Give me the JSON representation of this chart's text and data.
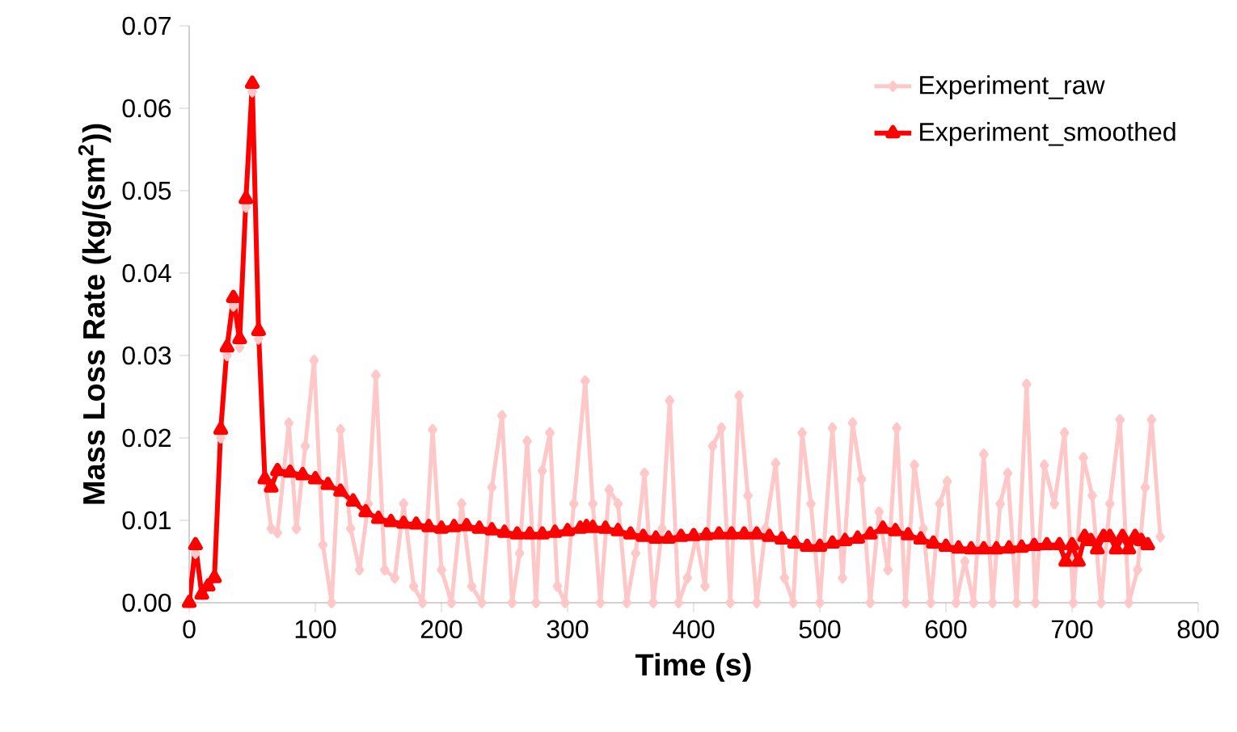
{
  "chart_data": {
    "type": "line",
    "xlabel": "Time (s)",
    "ylabel": "Mass Loss Rate (kg/(sm$^{2}$))",
    "xlim": [
      0,
      800
    ],
    "ylim": [
      0,
      0.07
    ],
    "xticks": [
      0,
      100,
      200,
      300,
      400,
      500,
      600,
      700,
      800
    ],
    "yticks": [
      {
        "value": 0,
        "label": "0.00"
      },
      {
        "value": 0.01,
        "label": "0.01"
      },
      {
        "value": 0.02,
        "label": "0.02"
      },
      {
        "value": 0.03,
        "label": "0.03"
      },
      {
        "value": 0.04,
        "label": "0.04"
      },
      {
        "value": 0.05,
        "label": "0.05"
      },
      {
        "value": 0.06,
        "label": "0.06"
      },
      {
        "value": 0.07,
        "label": "0.07"
      }
    ],
    "grid": false,
    "legend": "top right",
    "series": [
      {
        "name": "Experiment_raw",
        "color": "#ffc8c8",
        "marker": "diamond",
        "x": [
          0,
          5,
          10,
          15,
          20,
          25,
          30,
          35,
          40,
          45,
          50,
          55,
          60,
          65,
          70,
          79,
          85,
          92,
          99,
          106,
          113,
          120,
          128,
          135,
          142,
          148,
          155,
          163,
          170,
          178,
          185,
          193,
          200,
          208,
          216,
          224,
          232,
          240,
          248,
          256,
          262,
          268,
          275,
          280,
          286,
          292,
          298,
          305,
          314,
          320,
          326,
          333,
          340,
          347,
          354,
          361,
          368,
          375,
          381,
          388,
          395,
          402,
          409,
          415,
          422,
          429,
          436,
          443,
          450,
          457,
          465,
          472,
          479,
          486,
          493,
          500,
          510,
          518,
          526,
          533,
          540,
          547,
          554,
          561,
          568,
          575,
          582,
          588,
          595,
          601,
          608,
          615,
          622,
          630,
          637,
          643,
          649,
          656,
          664,
          671,
          678,
          686,
          694,
          701,
          709,
          716,
          723,
          730,
          738,
          745,
          752,
          758,
          763,
          770
        ],
        "values": [
          0,
          0.006,
          0.001,
          0.002,
          0.003,
          0.02,
          0.03,
          0.036,
          0.031,
          0.048,
          0.062,
          0.032,
          0.015,
          0.009,
          0.0085,
          0.0218,
          0.009,
          0.019,
          0.0294,
          0.007,
          0.0,
          0.021,
          0.009,
          0.004,
          0.012,
          0.0276,
          0.004,
          0.003,
          0.012,
          0.002,
          0.0,
          0.021,
          0.004,
          0.0,
          0.012,
          0.002,
          0.0,
          0.014,
          0.0227,
          0.0,
          0.006,
          0.0196,
          0.0,
          0.016,
          0.0206,
          0.002,
          0.0,
          0.012,
          0.0269,
          0.012,
          0.0,
          0.0137,
          0.012,
          0.0,
          0.006,
          0.0157,
          0.0,
          0.009,
          0.0245,
          0.0,
          0.003,
          0.008,
          0.002,
          0.019,
          0.0212,
          0.0,
          0.0251,
          0.013,
          0.0,
          0.009,
          0.0169,
          0.003,
          0.0,
          0.0206,
          0.012,
          0.0,
          0.0212,
          0.003,
          0.0218,
          0.015,
          0.0,
          0.011,
          0.004,
          0.0212,
          0.0,
          0.0167,
          0.009,
          0.0,
          0.012,
          0.0147,
          0.0,
          0.005,
          0.0,
          0.018,
          0.0,
          0.012,
          0.0157,
          0.0,
          0.0265,
          0.0,
          0.0167,
          0.012,
          0.0206,
          0.0,
          0.0176,
          0.013,
          0.0,
          0.012,
          0.0222,
          0.0,
          0.004,
          0.014,
          0.0222,
          0.008
        ]
      },
      {
        "name": "Experiment_smoothed",
        "color": "#ff0000",
        "marker": "triangle",
        "x": [
          0,
          5,
          10,
          15,
          20,
          25,
          30,
          35,
          40,
          45,
          50,
          55,
          60,
          65,
          70,
          80,
          90,
          100,
          110,
          120,
          130,
          140,
          150,
          160,
          170,
          180,
          190,
          200,
          210,
          220,
          230,
          240,
          250,
          260,
          270,
          280,
          290,
          300,
          310,
          315,
          320,
          330,
          340,
          350,
          360,
          370,
          380,
          390,
          400,
          410,
          420,
          430,
          440,
          450,
          460,
          470,
          480,
          490,
          500,
          510,
          520,
          530,
          540,
          550,
          560,
          570,
          580,
          590,
          600,
          610,
          620,
          630,
          640,
          650,
          660,
          670,
          680,
          690,
          695,
          700,
          705,
          710,
          715,
          720,
          725,
          730,
          735,
          740,
          745,
          750,
          755,
          760
        ],
        "values": [
          0,
          0.007,
          0.001,
          0.002,
          0.003,
          0.021,
          0.031,
          0.037,
          0.032,
          0.049,
          0.063,
          0.033,
          0.015,
          0.014,
          0.016,
          0.0158,
          0.0155,
          0.015,
          0.0143,
          0.0135,
          0.0123,
          0.011,
          0.0102,
          0.0098,
          0.0096,
          0.0095,
          0.0092,
          0.009,
          0.0092,
          0.0093,
          0.009,
          0.0088,
          0.0085,
          0.0083,
          0.0083,
          0.0083,
          0.0085,
          0.0087,
          0.009,
          0.0092,
          0.0091,
          0.009,
          0.0087,
          0.0083,
          0.008,
          0.0078,
          0.0078,
          0.008,
          0.0081,
          0.0082,
          0.0083,
          0.0083,
          0.0083,
          0.0083,
          0.008,
          0.0077,
          0.0072,
          0.0068,
          0.0068,
          0.0072,
          0.0075,
          0.0078,
          0.0083,
          0.009,
          0.0087,
          0.0082,
          0.0077,
          0.0072,
          0.0068,
          0.0066,
          0.0065,
          0.0065,
          0.0065,
          0.0066,
          0.0067,
          0.0069,
          0.007,
          0.007,
          0.005,
          0.007,
          0.005,
          0.008,
          0.0075,
          0.0065,
          0.008,
          0.008,
          0.0065,
          0.008,
          0.0065,
          0.008,
          0.0075,
          0.007
        ]
      }
    ]
  }
}
